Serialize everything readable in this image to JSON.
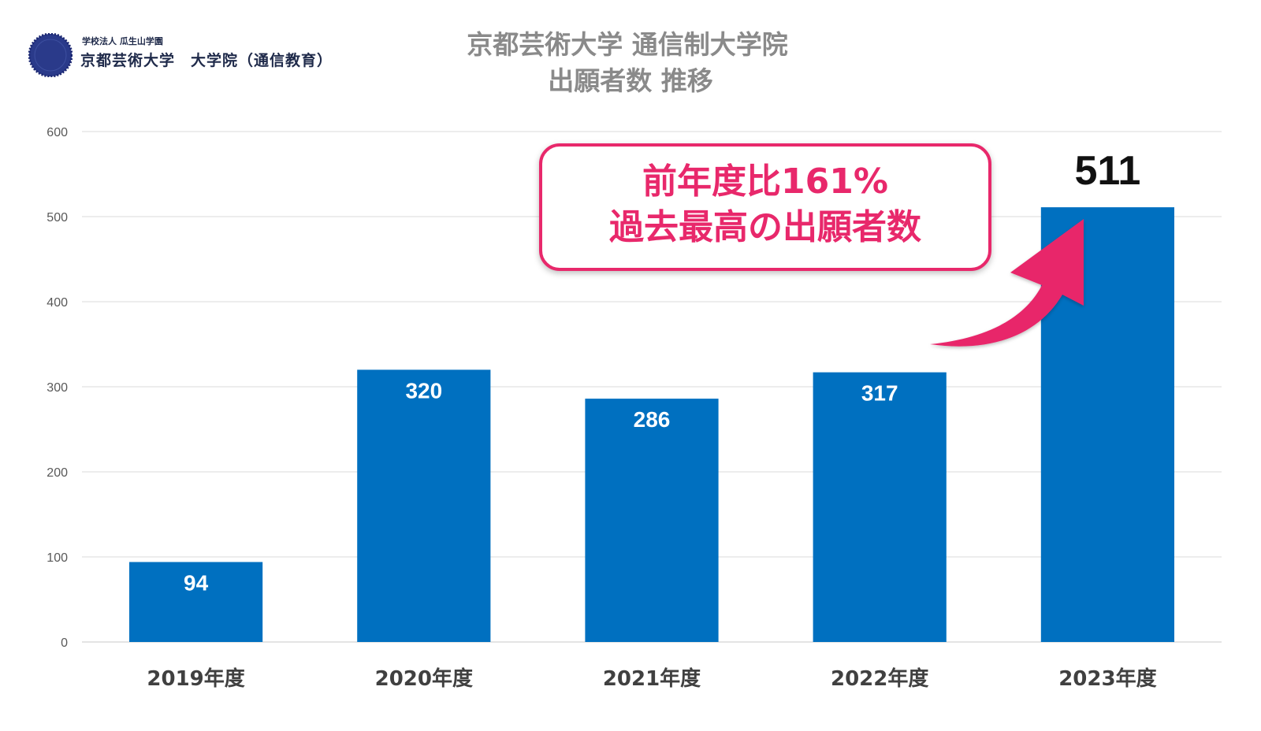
{
  "logo": {
    "small_text": "学校法人 瓜生山学園",
    "main_text": "京都芸術大学　大学院（通信教育）"
  },
  "chart_data": {
    "type": "bar",
    "title_line1": "京都芸術大学 通信制大学院",
    "title_line2": "出願者数 推移",
    "categories": [
      "2019年度",
      "2020年度",
      "2021年度",
      "2022年度",
      "2023年度"
    ],
    "values": [
      94,
      320,
      286,
      317,
      511
    ],
    "data_labels": [
      "94",
      "320",
      "286",
      "317",
      "511"
    ],
    "ylim": [
      0,
      600
    ],
    "yticks": [
      0,
      100,
      200,
      300,
      400,
      500,
      600
    ],
    "grid": true,
    "bar_color": "#0070c0",
    "annotation": {
      "line1": "前年度比161%",
      "line2": "過去最高の出願者数",
      "color": "#e8286b"
    }
  }
}
